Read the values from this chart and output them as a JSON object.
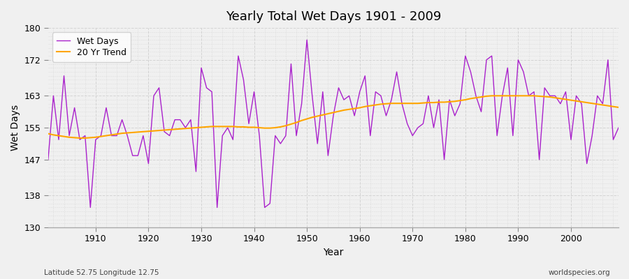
{
  "title": "Yearly Total Wet Days 1901 - 2009",
  "xlabel": "Year",
  "ylabel": "Wet Days",
  "lat_lon_label": "Latitude 52.75 Longitude 12.75",
  "source_label": "worldspecies.org",
  "ylim": [
    130,
    180
  ],
  "yticks": [
    130,
    138,
    147,
    155,
    163,
    172,
    180
  ],
  "xlim": [
    1901,
    2009
  ],
  "xticks": [
    1910,
    1920,
    1930,
    1940,
    1950,
    1960,
    1970,
    1980,
    1990,
    2000
  ],
  "wet_days_color": "#aa22cc",
  "trend_color": "#FFA500",
  "plot_bg_color": "#f0f0f0",
  "fig_bg_color": "#f0f0f0",
  "grid_color": "#cccccc",
  "wet_days": {
    "1901": 147,
    "1902": 163,
    "1903": 152,
    "1904": 168,
    "1905": 153,
    "1906": 160,
    "1907": 152,
    "1908": 153,
    "1909": 135,
    "1910": 152,
    "1911": 153,
    "1912": 160,
    "1913": 153,
    "1914": 153,
    "1915": 157,
    "1916": 153,
    "1917": 148,
    "1918": 148,
    "1919": 153,
    "1920": 146,
    "1921": 163,
    "1922": 165,
    "1923": 154,
    "1924": 153,
    "1925": 157,
    "1926": 157,
    "1927": 155,
    "1928": 157,
    "1929": 144,
    "1930": 170,
    "1931": 165,
    "1932": 164,
    "1933": 135,
    "1934": 153,
    "1935": 155,
    "1936": 152,
    "1937": 173,
    "1938": 167,
    "1939": 156,
    "1940": 164,
    "1941": 153,
    "1942": 135,
    "1943": 136,
    "1944": 153,
    "1945": 151,
    "1946": 153,
    "1947": 171,
    "1948": 153,
    "1949": 161,
    "1950": 177,
    "1951": 163,
    "1952": 151,
    "1953": 164,
    "1954": 148,
    "1955": 158,
    "1956": 165,
    "1957": 162,
    "1958": 163,
    "1959": 158,
    "1960": 164,
    "1961": 168,
    "1962": 153,
    "1963": 164,
    "1964": 163,
    "1965": 158,
    "1966": 162,
    "1967": 169,
    "1968": 161,
    "1969": 156,
    "1970": 153,
    "1971": 155,
    "1972": 156,
    "1973": 163,
    "1974": 155,
    "1975": 162,
    "1976": 147,
    "1977": 162,
    "1978": 158,
    "1979": 161,
    "1980": 173,
    "1981": 169,
    "1982": 163,
    "1983": 159,
    "1984": 172,
    "1985": 173,
    "1986": 153,
    "1987": 163,
    "1988": 170,
    "1989": 153,
    "1990": 172,
    "1991": 169,
    "1992": 163,
    "1993": 164,
    "1994": 147,
    "1995": 165,
    "1996": 163,
    "1997": 163,
    "1998": 161,
    "1999": 164,
    "2000": 152,
    "2001": 163,
    "2002": 161,
    "2003": 146,
    "2004": 153,
    "2005": 163,
    "2006": 161,
    "2007": 172,
    "2008": 152,
    "2009": 155
  },
  "trend_years": [
    1901,
    1902,
    1903,
    1904,
    1905,
    1906,
    1907,
    1908,
    1909,
    1910,
    1911,
    1912,
    1913,
    1914,
    1915,
    1916,
    1917,
    1918,
    1919,
    1920,
    1921,
    1922,
    1923,
    1924,
    1925,
    1926,
    1927,
    1928,
    1929,
    1930,
    1931,
    1932,
    1933,
    1934,
    1935,
    1936,
    1937,
    1938,
    1939,
    1940,
    1941,
    1942,
    1943,
    1944,
    1945,
    1946,
    1947,
    1948,
    1949,
    1950,
    1951,
    1952,
    1953,
    1954,
    1955,
    1956,
    1957,
    1958,
    1959,
    1960,
    1961,
    1962,
    1963,
    1964,
    1965,
    1966,
    1967,
    1968,
    1969,
    1970,
    1971,
    1972,
    1973,
    1974,
    1975,
    1976,
    1977,
    1978,
    1979,
    1980,
    1981,
    1982,
    1983,
    1984,
    1985,
    1986,
    1987,
    1988,
    1989,
    1990,
    1991,
    1992,
    1993,
    1994,
    1995,
    1996,
    1997,
    1998,
    1999,
    2000,
    2001,
    2002,
    2003,
    2004,
    2005,
    2006,
    2007,
    2008,
    2009
  ],
  "trend_vals": [
    153.5,
    153.2,
    153.0,
    152.8,
    152.6,
    152.5,
    152.4,
    152.4,
    152.5,
    152.6,
    152.8,
    153.0,
    153.2,
    153.4,
    153.6,
    153.7,
    153.8,
    153.9,
    154.0,
    154.1,
    154.2,
    154.3,
    154.4,
    154.5,
    154.6,
    154.7,
    154.8,
    154.9,
    155.0,
    155.1,
    155.2,
    155.3,
    155.3,
    155.3,
    155.3,
    155.3,
    155.2,
    155.2,
    155.1,
    155.1,
    155.0,
    154.9,
    154.9,
    155.0,
    155.2,
    155.5,
    155.9,
    156.3,
    156.8,
    157.2,
    157.6,
    157.9,
    158.2,
    158.5,
    158.8,
    159.1,
    159.4,
    159.6,
    159.8,
    160.0,
    160.3,
    160.5,
    160.7,
    160.9,
    161.0,
    161.1,
    161.1,
    161.1,
    161.1,
    161.1,
    161.1,
    161.2,
    161.3,
    161.3,
    161.4,
    161.4,
    161.5,
    161.6,
    161.8,
    162.0,
    162.3,
    162.5,
    162.7,
    162.9,
    163.0,
    163.0,
    163.0,
    163.0,
    163.0,
    163.0,
    163.0,
    163.0,
    163.0,
    162.9,
    162.8,
    162.7,
    162.5,
    162.3,
    162.1,
    161.9,
    161.7,
    161.5,
    161.3,
    161.1,
    160.9,
    160.7,
    160.5,
    160.3,
    160.1
  ]
}
